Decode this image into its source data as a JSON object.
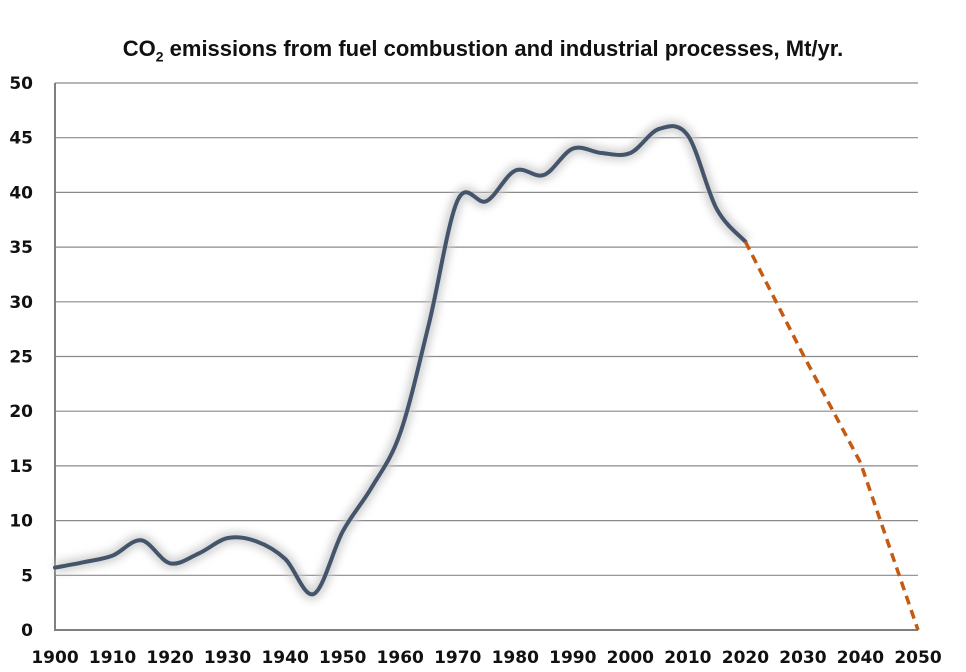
{
  "chart_data": {
    "type": "line",
    "title": "CO2 emissions from fuel combustion and industrial processes, Mt/yr.",
    "title_parts": {
      "pre": "CO",
      "sub": "2",
      "post": " emissions from fuel combustion and industrial processes, Mt/yr."
    },
    "xlabel": "",
    "ylabel": "",
    "xlim": [
      1900,
      2050
    ],
    "ylim": [
      0,
      50
    ],
    "x_ticks": [
      "1900",
      "1910",
      "1920",
      "1930",
      "1940",
      "1950",
      "1960",
      "1970",
      "1980",
      "1990",
      "2000",
      "2010",
      "2020",
      "2030",
      "2040",
      "2050"
    ],
    "y_ticks": [
      "0",
      "5",
      "10",
      "15",
      "20",
      "25",
      "30",
      "35",
      "40",
      "45",
      "50"
    ],
    "grid": "horizontal",
    "series": [
      {
        "style": "solid",
        "color": "#44546a",
        "x": [
          1900,
          1905,
          1910,
          1915,
          1920,
          1925,
          1930,
          1935,
          1940,
          1945,
          1950,
          1955,
          1960,
          1965,
          1970,
          1975,
          1980,
          1985,
          1990,
          1995,
          2000,
          2005,
          2010,
          2015,
          2020
        ],
        "y": [
          5.7,
          6.2,
          6.8,
          8.2,
          6.1,
          7.0,
          8.4,
          8.1,
          6.5,
          3.3,
          9.0,
          13.0,
          18.0,
          28.0,
          39.3,
          39.2,
          42.0,
          41.6,
          44.0,
          43.6,
          43.6,
          45.8,
          45.2,
          38.5,
          35.5
        ]
      },
      {
        "style": "dashed",
        "color": "#c55a11",
        "x": [
          2020,
          2030,
          2040,
          2050
        ],
        "y": [
          35.5,
          25.2,
          15.3,
          0
        ]
      }
    ]
  }
}
